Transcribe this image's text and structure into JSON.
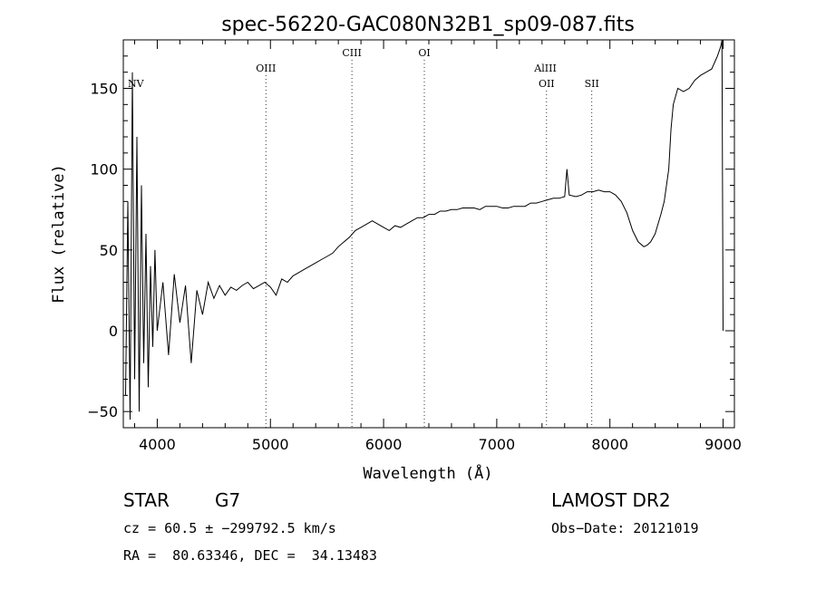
{
  "chart_data": {
    "type": "line",
    "title": "spec-56220-GAC080N32B1_sp09-087.fits",
    "xlabel": "Wavelength (Å)",
    "ylabel": "Flux (relative)",
    "xlim": [
      3700,
      9100
    ],
    "ylim": [
      -60,
      180
    ],
    "x_ticks": [
      4000,
      5000,
      6000,
      7000,
      8000,
      9000
    ],
    "y_ticks": [
      -50,
      0,
      50,
      100,
      150
    ],
    "grid": false,
    "spectral_lines": [
      {
        "label": "NV",
        "x": 3810
      },
      {
        "label": "OIII",
        "x": 4960
      },
      {
        "label": "CIII",
        "x": 5720
      },
      {
        "label": "OI",
        "x": 6360
      },
      {
        "label": "AlIII",
        "x": 7430
      },
      {
        "label": "OII",
        "x": 7440
      },
      {
        "label": "SII",
        "x": 7840
      }
    ],
    "series": [
      {
        "x": [
          3720,
          3740,
          3760,
          3780,
          3800,
          3820,
          3840,
          3860,
          3880,
          3900,
          3920,
          3940,
          3960,
          3980,
          4000,
          4050,
          4100,
          4150,
          4200,
          4250,
          4300,
          4350,
          4400,
          4450,
          4500,
          4550,
          4600,
          4650,
          4700,
          4750,
          4800,
          4850,
          4900,
          4950,
          5000,
          5050,
          5100,
          5150,
          5200,
          5250,
          5300,
          5350,
          5400,
          5450,
          5500,
          5550,
          5600,
          5650,
          5700,
          5750,
          5800,
          5850,
          5900,
          5950,
          6000,
          6050,
          6100,
          6150,
          6200,
          6250,
          6300,
          6350,
          6400,
          6450,
          6500,
          6550,
          6600,
          6650,
          6700,
          6750,
          6800,
          6850,
          6900,
          6950,
          7000,
          7050,
          7100,
          7150,
          7200,
          7250,
          7300,
          7350,
          7400,
          7450,
          7500,
          7550,
          7600,
          7620,
          7640,
          7700,
          7750,
          7800,
          7850,
          7900,
          7950,
          8000,
          8050,
          8100,
          8150,
          8200,
          8250,
          8300,
          8330,
          8360,
          8400,
          8450,
          8480,
          8500,
          8520,
          8540,
          8560,
          8580,
          8600,
          8650,
          8700,
          8750,
          8800,
          8850,
          8900,
          8950,
          8980,
          8990,
          9000
        ],
        "y": [
          -40,
          80,
          -55,
          160,
          -30,
          120,
          -50,
          90,
          -20,
          60,
          -35,
          40,
          -10,
          50,
          0,
          30,
          -15,
          35,
          5,
          28,
          -20,
          25,
          10,
          30,
          20,
          28,
          22,
          27,
          25,
          28,
          30,
          26,
          28,
          30,
          27,
          22,
          32,
          30,
          34,
          36,
          38,
          40,
          42,
          44,
          46,
          48,
          52,
          55,
          58,
          62,
          64,
          66,
          68,
          66,
          64,
          62,
          65,
          64,
          66,
          68,
          70,
          70,
          72,
          72,
          74,
          74,
          75,
          75,
          76,
          76,
          76,
          75,
          77,
          77,
          77,
          76,
          76,
          77,
          77,
          77,
          79,
          79,
          80,
          81,
          82,
          82,
          83,
          100,
          84,
          83,
          84,
          86,
          86,
          87,
          86,
          86,
          84,
          80,
          73,
          62,
          55,
          52,
          53,
          55,
          60,
          72,
          80,
          90,
          100,
          125,
          140,
          145,
          150,
          148,
          150,
          155,
          158,
          160,
          162,
          170,
          176,
          180,
          0
        ]
      }
    ]
  },
  "footer": {
    "object_class": "STAR",
    "subclass": "G7",
    "survey": "LAMOST DR2",
    "redshift": "cz = 60.5 ± −299792.5 km/s",
    "obs_date": "Obs−Date: 20121019",
    "coords": "RA =  80.63346, DEC =  34.13483"
  }
}
